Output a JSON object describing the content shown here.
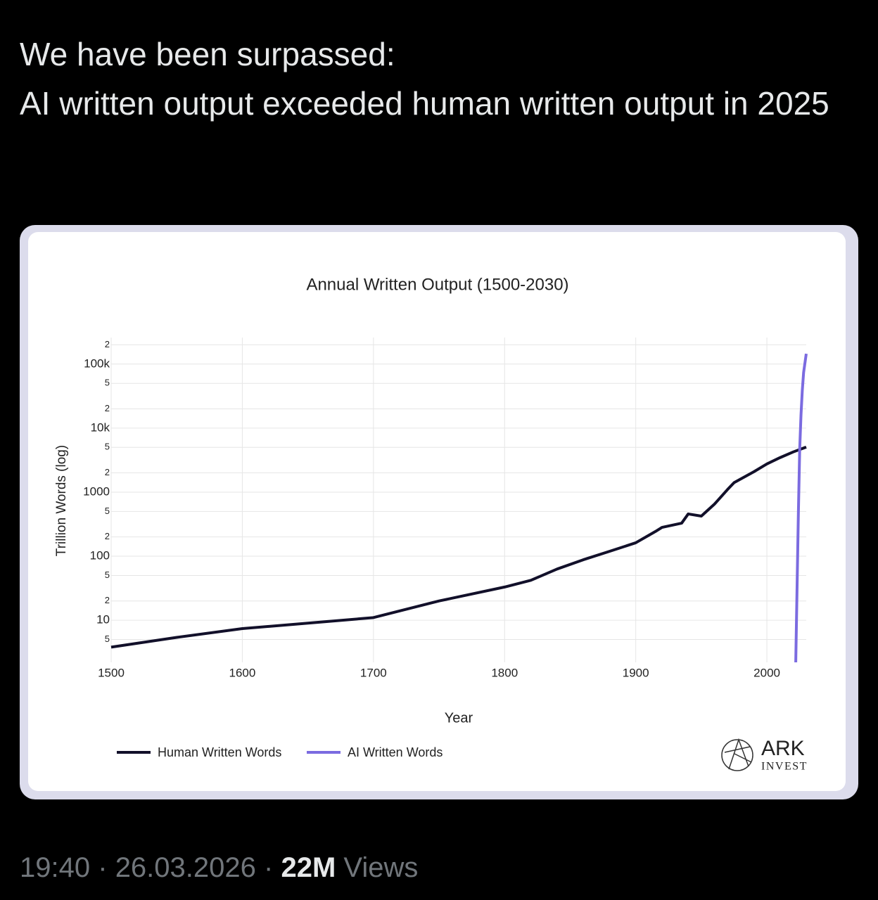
{
  "post": {
    "text": [
      "We have been surpassed:",
      "AI written output exceeded human written output in 2025"
    ]
  },
  "footer": {
    "time": "19:40",
    "separator": "·",
    "date": "26.03.2026",
    "views_count": "22M",
    "views_label": "Views"
  },
  "logo": {
    "name": "ARK",
    "subname": "INVEST"
  },
  "chart_data": {
    "type": "line",
    "title": "Annual Written Output (1500-2030)",
    "x_label": "Year",
    "y_label": "Trillion Words (log)",
    "xlim": [
      1500,
      2030
    ],
    "xticks": [
      1500,
      1600,
      1700,
      1800,
      1900,
      2000
    ],
    "ylim": [
      2.2,
      260000
    ],
    "log_y": true,
    "grid": true,
    "yticks": [
      5,
      10,
      {
        "value": 20,
        "label": "2"
      },
      {
        "value": 50,
        "label": "5"
      },
      100,
      {
        "value": 200,
        "label": "2"
      },
      {
        "value": 500,
        "label": "5"
      },
      1000,
      {
        "value": 2000,
        "label": "2"
      },
      {
        "value": 5000,
        "label": "5"
      },
      {
        "value": 10000,
        "label": "10k"
      },
      {
        "value": 20000,
        "label": "2"
      },
      {
        "value": 50000,
        "label": "5"
      },
      {
        "value": 100000,
        "label": "100k"
      },
      {
        "value": 200000,
        "label": "2"
      }
    ],
    "series": [
      {
        "name": "Human Written Words",
        "color": "#12102a",
        "x": [
          1500,
          1550,
          1600,
          1650,
          1700,
          1750,
          1800,
          1820,
          1840,
          1860,
          1880,
          1900,
          1915,
          1920,
          1935,
          1940,
          1950,
          1960,
          1970,
          1975,
          1990,
          2000,
          2010,
          2020,
          2030
        ],
        "values": [
          3.8,
          5.4,
          7.4,
          9.0,
          11,
          20,
          33,
          42,
          63,
          88,
          119,
          162,
          243,
          282,
          328,
          457,
          423,
          650,
          1100,
          1410,
          2080,
          2760,
          3460,
          4240,
          5060
        ]
      },
      {
        "name": "AI Written Words",
        "color": "#7b6be0",
        "x": [
          2022,
          2024,
          2025,
          2026,
          2027,
          2028,
          2030
        ],
        "values": [
          2.2,
          463,
          4600,
          16000,
          39000,
          74000,
          145000
        ]
      }
    ]
  }
}
